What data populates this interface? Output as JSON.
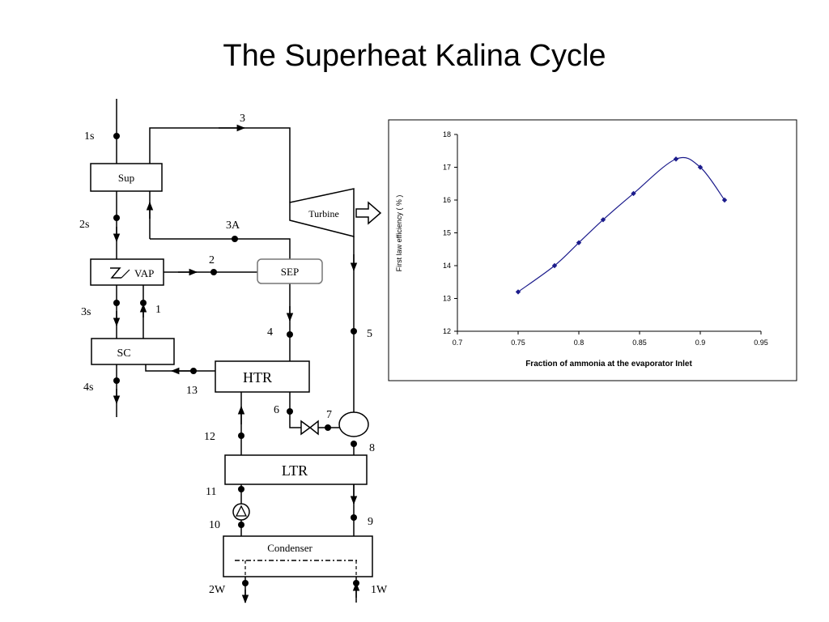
{
  "slide": {
    "title": "The Superheat Kalina Cycle"
  },
  "diagram": {
    "components": {
      "sup": "Sup",
      "vap": "VAP",
      "sep": "SEP",
      "turbine": "Turbine",
      "sc": "SC",
      "htr": "HTR",
      "ltr": "LTR",
      "condenser": "Condenser"
    },
    "states": {
      "s1s": "1s",
      "s2s": "2s",
      "s3s": "3s",
      "s4s": "4s",
      "s1": "1",
      "s2": "2",
      "s3": "3",
      "s3a": "3A",
      "s4": "4",
      "s5": "5",
      "s6": "6",
      "s7": "7",
      "s8": "8",
      "s9": "9",
      "s10": "10",
      "s11": "11",
      "s12": "12",
      "s13": "13",
      "w1": "1W",
      "w2": "2W"
    }
  },
  "chart_data": {
    "type": "line",
    "title": "",
    "xlabel": "Fraction of ammonia at the evaporator Inlet",
    "ylabel": "First law efficiency ( % )",
    "xlim": [
      0.7,
      0.95
    ],
    "ylim": [
      12,
      18
    ],
    "xticks": [
      "0.7",
      "0.75",
      "0.8",
      "0.85",
      "0.9",
      "0.95"
    ],
    "yticks": [
      "12",
      "13",
      "14",
      "15",
      "16",
      "17",
      "18"
    ],
    "grid": false,
    "series": [
      {
        "x": [
          0.75,
          0.78,
          0.8,
          0.82,
          0.845,
          0.88,
          0.9,
          0.92
        ],
        "y": [
          13.2,
          14.0,
          14.7,
          15.4,
          16.2,
          17.25,
          17.0,
          16.0
        ],
        "color": "#1c1c8c"
      }
    ]
  }
}
